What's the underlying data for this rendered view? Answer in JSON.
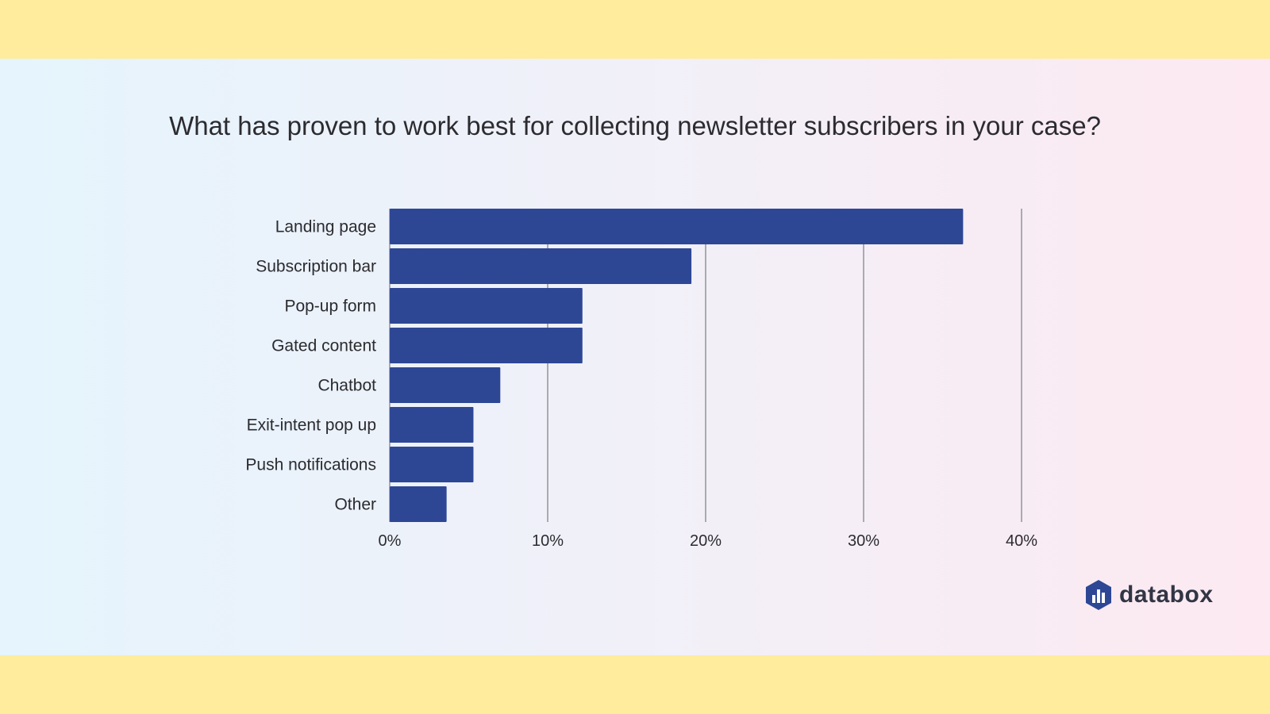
{
  "chart_data": {
    "type": "bar",
    "orientation": "horizontal",
    "title": "What has proven to work best for collecting newsletter subscribers in your case?",
    "categories": [
      "Landing page",
      "Subscription bar",
      "Pop-up form",
      "Gated content",
      "Chatbot",
      "Exit-intent pop up",
      "Push notifications",
      "Other"
    ],
    "values": [
      36.3,
      19.1,
      12.2,
      12.2,
      7.0,
      5.3,
      5.3,
      3.6
    ],
    "unit": "%",
    "xlim": [
      0,
      40
    ],
    "xticks": [
      "0%",
      "10%",
      "20%",
      "30%",
      "40%"
    ],
    "grid": true,
    "legend": "none",
    "bar_color": "#2e4795"
  },
  "brand": {
    "name": "databox",
    "logo_icon": "databox-hexagon-icon",
    "color": "#2e4795"
  },
  "colors": {
    "band": "#ffec9c",
    "grid": "#a9abb1",
    "text": "#2b2b30"
  }
}
